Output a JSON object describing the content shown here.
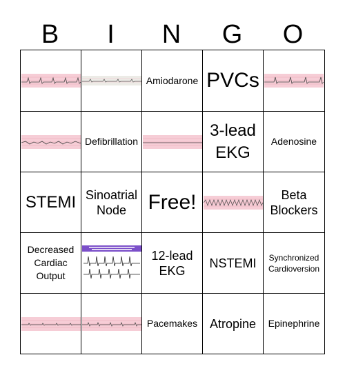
{
  "header": {
    "letters": [
      "B",
      "I",
      "N",
      "G",
      "O"
    ]
  },
  "cells": [
    {
      "text": ""
    },
    {
      "text": ""
    },
    {
      "text": "Amiodarone"
    },
    {
      "text": "PVCs"
    },
    {
      "text": ""
    },
    {
      "text": ""
    },
    {
      "text": "Defibrillation"
    },
    {
      "text": ""
    },
    {
      "text": "3-lead EKG"
    },
    {
      "text": "Adenosine"
    },
    {
      "text": "STEMI"
    },
    {
      "text": "Sinoatrial Node"
    },
    {
      "text": "Free!"
    },
    {
      "text": ""
    },
    {
      "text": "Beta Blockers"
    },
    {
      "text": "Decreased Cardiac Output"
    },
    {
      "text": ""
    },
    {
      "text": "12-lead EKG"
    },
    {
      "text": "NSTEMI"
    },
    {
      "text": "Synchronized Cardioversion"
    },
    {
      "text": ""
    },
    {
      "text": ""
    },
    {
      "text": "Pacemakes"
    },
    {
      "text": "Atropine"
    },
    {
      "text": "Epinephrine"
    }
  ],
  "colors": {
    "strip_pink": "#f6cdd6",
    "strip_gray": "#ecebe6",
    "trace": "#444444",
    "tile_header": "#7b4fc9"
  }
}
